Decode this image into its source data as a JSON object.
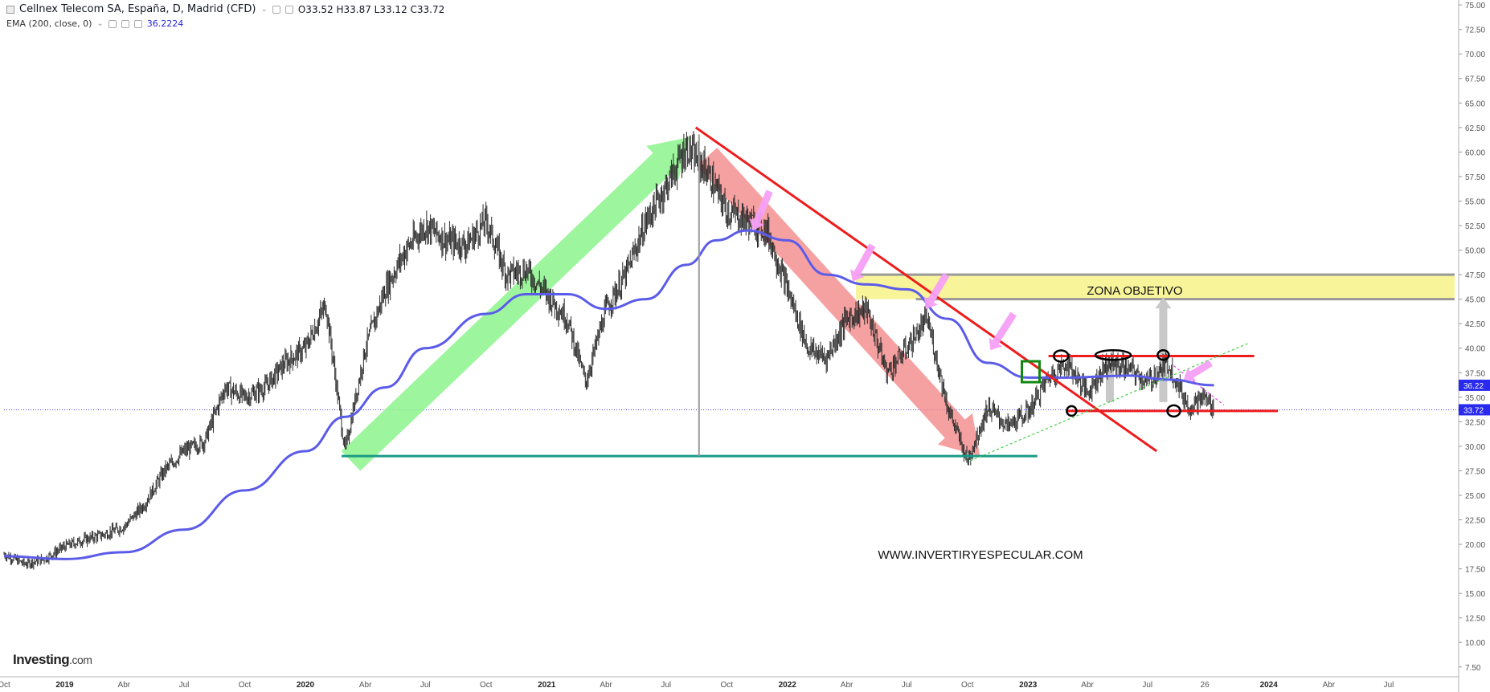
{
  "header": {
    "instrument": "Cellnex Telecom SA, España, D, Madrid (CFD)",
    "ohlc": "O33.52  H33.87  L33.12  C33.72",
    "indicator_label": "EMA (200, close, 0)",
    "indicator_value": "36.2224"
  },
  "brand": {
    "logo_main": "Investing",
    "logo_suffix": ".com"
  },
  "colors": {
    "candle": "#2a2a2a",
    "ema": "#5b5bea",
    "trendline": "#ee1c1c",
    "support": "#1a9a86",
    "up_arrow": "#8cf58c",
    "down_arrow": "#f48a8a",
    "pink_arrow": "#f5a0f5",
    "zone": "#f8f49a",
    "price_tag": "#2a2aee"
  },
  "chart_data": {
    "type": "line",
    "title": "Cellnex Telecom SA, España, D, Madrid (CFD)",
    "y_axis": {
      "ylim": [
        6.5,
        75.5
      ],
      "ticks": [
        "75.00",
        "72.50",
        "70.00",
        "67.50",
        "65.00",
        "62.50",
        "60.00",
        "57.50",
        "55.00",
        "52.50",
        "50.00",
        "47.50",
        "45.00",
        "42.50",
        "40.00",
        "37.50",
        "35.00",
        "32.50",
        "30.00",
        "27.50",
        "25.00",
        "22.50",
        "20.00",
        "17.50",
        "15.00",
        "12.50",
        "10.00",
        "7.50"
      ]
    },
    "x_axis": {
      "range": [
        "2018-10-01",
        "2024-10-15"
      ],
      "ticks": [
        {
          "label": "Oct",
          "date": "2018-10-01"
        },
        {
          "label": "2019",
          "date": "2019-01-01",
          "bold": true
        },
        {
          "label": "Abr",
          "date": "2019-04-01"
        },
        {
          "label": "Jul",
          "date": "2019-07-01"
        },
        {
          "label": "Oct",
          "date": "2019-10-01"
        },
        {
          "label": "2020",
          "date": "2020-01-01",
          "bold": true
        },
        {
          "label": "Abr",
          "date": "2020-04-01"
        },
        {
          "label": "Jul",
          "date": "2020-07-01"
        },
        {
          "label": "Oct",
          "date": "2020-10-01"
        },
        {
          "label": "2021",
          "date": "2021-01-01",
          "bold": true
        },
        {
          "label": "Abr",
          "date": "2021-04-01"
        },
        {
          "label": "Jul",
          "date": "2021-07-01"
        },
        {
          "label": "Oct",
          "date": "2021-10-01"
        },
        {
          "label": "2022",
          "date": "2022-01-01",
          "bold": true
        },
        {
          "label": "Abr",
          "date": "2022-04-01"
        },
        {
          "label": "Jul",
          "date": "2022-07-01"
        },
        {
          "label": "Oct",
          "date": "2022-10-01"
        },
        {
          "label": "2023",
          "date": "2023-01-01",
          "bold": true
        },
        {
          "label": "Abr",
          "date": "2023-04-01"
        },
        {
          "label": "Jul",
          "date": "2023-07-01"
        },
        {
          "label": "26",
          "date": "2023-09-26"
        },
        {
          "label": "2024",
          "date": "2024-01-01",
          "bold": true
        },
        {
          "label": "Abr",
          "date": "2024-04-01"
        },
        {
          "label": "Jul",
          "date": "2024-07-01"
        }
      ]
    },
    "series": [
      {
        "name": "Cellnex Telecom SA",
        "kind": "price",
        "points": [
          [
            "2018-10-01",
            19.0
          ],
          [
            "2018-11-01",
            18.0
          ],
          [
            "2018-12-01",
            18.5
          ],
          [
            "2019-01-01",
            19.8
          ],
          [
            "2019-02-01",
            20.5
          ],
          [
            "2019-03-01",
            21.0
          ],
          [
            "2019-04-01",
            21.8
          ],
          [
            "2019-05-01",
            24.0
          ],
          [
            "2019-06-01",
            27.5
          ],
          [
            "2019-07-01",
            29.5
          ],
          [
            "2019-08-01",
            30.5
          ],
          [
            "2019-09-01",
            36.0
          ],
          [
            "2019-10-01",
            35.0
          ],
          [
            "2019-11-01",
            36.0
          ],
          [
            "2019-12-01",
            38.5
          ],
          [
            "2020-01-01",
            40.0
          ],
          [
            "2020-02-01",
            44.5
          ],
          [
            "2020-03-01",
            29.5
          ],
          [
            "2020-04-01",
            40.0
          ],
          [
            "2020-05-01",
            46.0
          ],
          [
            "2020-06-01",
            50.0
          ],
          [
            "2020-07-01",
            52.5
          ],
          [
            "2020-08-01",
            51.0
          ],
          [
            "2020-09-01",
            50.5
          ],
          [
            "2020-10-01",
            53.0
          ],
          [
            "2020-11-01",
            47.5
          ],
          [
            "2020-12-01",
            48.0
          ],
          [
            "2021-01-01",
            45.5
          ],
          [
            "2021-02-01",
            43.0
          ],
          [
            "2021-03-01",
            36.5
          ],
          [
            "2021-04-01",
            44.0
          ],
          [
            "2021-05-01",
            47.5
          ],
          [
            "2021-06-01",
            53.0
          ],
          [
            "2021-07-01",
            56.5
          ],
          [
            "2021-08-01",
            60.5
          ],
          [
            "2021-09-01",
            58.0
          ],
          [
            "2021-10-01",
            54.0
          ],
          [
            "2021-11-01",
            53.0
          ],
          [
            "2021-12-01",
            52.0
          ],
          [
            "2022-01-01",
            46.0
          ],
          [
            "2022-02-01",
            40.0
          ],
          [
            "2022-03-01",
            39.0
          ],
          [
            "2022-04-01",
            43.0
          ],
          [
            "2022-05-01",
            44.0
          ],
          [
            "2022-06-01",
            37.5
          ],
          [
            "2022-07-01",
            40.0
          ],
          [
            "2022-08-01",
            43.0
          ],
          [
            "2022-09-01",
            34.0
          ],
          [
            "2022-10-01",
            28.5
          ],
          [
            "2022-11-01",
            34.0
          ],
          [
            "2022-12-01",
            32.0
          ],
          [
            "2023-01-01",
            33.5
          ],
          [
            "2023-02-01",
            37.0
          ],
          [
            "2023-03-01",
            38.5
          ],
          [
            "2023-04-01",
            35.5
          ],
          [
            "2023-05-01",
            38.5
          ],
          [
            "2023-06-01",
            38.0
          ],
          [
            "2023-07-01",
            36.5
          ],
          [
            "2023-08-01",
            38.5
          ],
          [
            "2023-09-01",
            34.0
          ],
          [
            "2023-09-26",
            35.0
          ],
          [
            "2023-10-10",
            33.7
          ]
        ]
      },
      {
        "name": "EMA (200, close, 0)",
        "kind": "ema",
        "points": [
          [
            "2018-10-01",
            18.8
          ],
          [
            "2019-01-01",
            18.5
          ],
          [
            "2019-04-01",
            19.2
          ],
          [
            "2019-07-01",
            21.5
          ],
          [
            "2019-10-01",
            25.5
          ],
          [
            "2020-01-01",
            29.5
          ],
          [
            "2020-03-01",
            33.0
          ],
          [
            "2020-05-01",
            36.0
          ],
          [
            "2020-07-01",
            40.0
          ],
          [
            "2020-10-01",
            43.5
          ],
          [
            "2020-12-01",
            45.5
          ],
          [
            "2021-02-01",
            45.5
          ],
          [
            "2021-04-01",
            44.0
          ],
          [
            "2021-06-01",
            45.0
          ],
          [
            "2021-08-01",
            48.5
          ],
          [
            "2021-09-15",
            51.0
          ],
          [
            "2021-11-01",
            52.0
          ],
          [
            "2022-01-01",
            51.0
          ],
          [
            "2022-03-01",
            47.5
          ],
          [
            "2022-05-01",
            46.5
          ],
          [
            "2022-07-01",
            46.0
          ],
          [
            "2022-09-01",
            43.0
          ],
          [
            "2022-11-01",
            38.5
          ],
          [
            "2023-01-01",
            37.0
          ],
          [
            "2023-03-01",
            37.0
          ],
          [
            "2023-06-01",
            37.2
          ],
          [
            "2023-08-01",
            36.8
          ],
          [
            "2023-10-10",
            36.22
          ]
        ]
      }
    ],
    "current_price": 33.72,
    "current_ema": 36.22,
    "current_price_label": "33.72",
    "current_ema_label": "36.22",
    "annotations": {
      "zone_label": "ZONA OBJETIVO",
      "watermark": "WWW.INVERTIRYESPECULAR.COM",
      "zone_range": [
        45.0,
        47.5
      ],
      "support_level": 29.0,
      "range_top": 39.2,
      "range_bottom": 33.6,
      "downtrend": {
        "from": [
          "2021-08-15",
          62.5
        ],
        "to": [
          "2023-07-15",
          29.5
        ]
      },
      "uptrend_dotted": {
        "from": [
          "2022-10-05",
          28.5
        ],
        "to": [
          "2023-12-01",
          40.5
        ]
      }
    }
  }
}
